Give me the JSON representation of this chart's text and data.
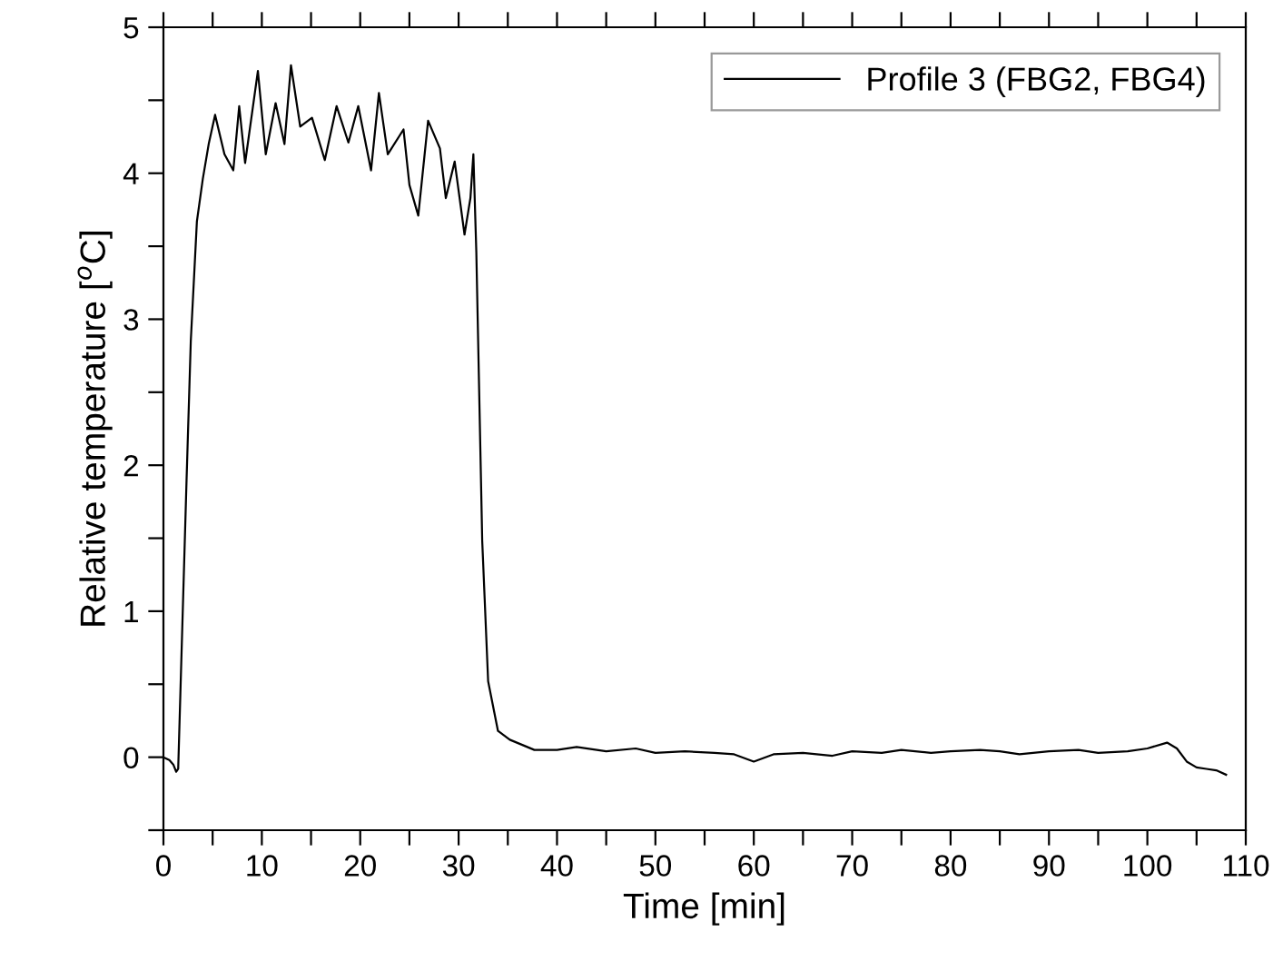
{
  "chart_data": {
    "type": "line",
    "xlabel": "Time [min]",
    "ylabel": "Relative temperature [$^{o}$C]",
    "xlim": [
      0,
      110
    ],
    "ylim": [
      -0.5,
      5
    ],
    "xticks": [
      0,
      {
        "value": 5,
        "label": null
      },
      10,
      {
        "value": 15,
        "label": null
      },
      20,
      {
        "value": 25,
        "label": null
      },
      30,
      {
        "value": 35,
        "label": null
      },
      40,
      {
        "value": 45,
        "label": null
      },
      50,
      {
        "value": 55,
        "label": null
      },
      60,
      {
        "value": 65,
        "label": null
      },
      70,
      {
        "value": 75,
        "label": null
      },
      80,
      {
        "value": 85,
        "label": null
      },
      90,
      {
        "value": 95,
        "label": null
      },
      100,
      {
        "value": 105,
        "label": null
      },
      110
    ],
    "yticks": [
      {
        "value": -0.5,
        "label": null
      },
      0,
      {
        "value": 0.5,
        "label": null
      },
      1,
      {
        "value": 1.5,
        "label": null
      },
      2,
      {
        "value": 2.5,
        "label": null
      },
      3,
      {
        "value": 3.5,
        "label": null
      },
      4,
      {
        "value": 4.5,
        "label": null
      },
      5
    ],
    "grid": false,
    "legend": "top right",
    "marker": "none",
    "line_style": "solid",
    "series": [
      {
        "name": "Profile 3 (FBG2, FBG4)",
        "color": "#000000",
        "x": [
          0,
          0.6,
          1.0,
          1.3,
          1.5,
          2.35,
          2.78,
          3.4,
          4.0,
          4.6,
          5.25,
          6.2,
          7.1,
          7.7,
          8.3,
          9.6,
          10.4,
          11.4,
          12.3,
          12.96,
          13.9,
          15.1,
          16.4,
          17.6,
          18.8,
          19.8,
          21.1,
          21.9,
          22.8,
          24.4,
          25.0,
          25.9,
          26.9,
          28.1,
          28.7,
          29.6,
          30.6,
          31.2,
          31.5,
          31.8,
          32.4,
          33.0,
          34.0,
          35.2,
          37.7,
          40,
          42,
          45,
          48,
          50,
          53,
          56,
          58,
          60,
          62,
          65,
          68,
          70,
          73,
          75,
          78,
          80,
          83,
          85,
          87,
          90,
          93,
          95,
          98,
          100,
          102,
          103,
          104,
          105,
          106,
          107,
          108
        ],
        "values": [
          0,
          -0.02,
          -0.05,
          -0.1,
          -0.08,
          1.9,
          2.85,
          3.67,
          3.96,
          4.2,
          4.4,
          4.13,
          4.02,
          4.46,
          4.07,
          4.7,
          4.13,
          4.48,
          4.2,
          4.74,
          4.32,
          4.38,
          4.09,
          4.46,
          4.21,
          4.46,
          4.02,
          4.55,
          4.13,
          4.3,
          3.92,
          3.71,
          4.36,
          4.17,
          3.83,
          4.08,
          3.58,
          3.83,
          4.13,
          3.46,
          1.48,
          0.52,
          0.18,
          0.12,
          0.05,
          0.05,
          0.07,
          0.04,
          0.06,
          0.03,
          0.04,
          0.03,
          0.02,
          -0.03,
          0.02,
          0.03,
          0.01,
          0.04,
          0.03,
          0.05,
          0.03,
          0.04,
          0.05,
          0.04,
          0.02,
          0.04,
          0.05,
          0.03,
          0.04,
          0.06,
          0.1,
          0.06,
          -0.03,
          -0.07,
          -0.08,
          -0.09,
          -0.12
        ]
      }
    ]
  }
}
